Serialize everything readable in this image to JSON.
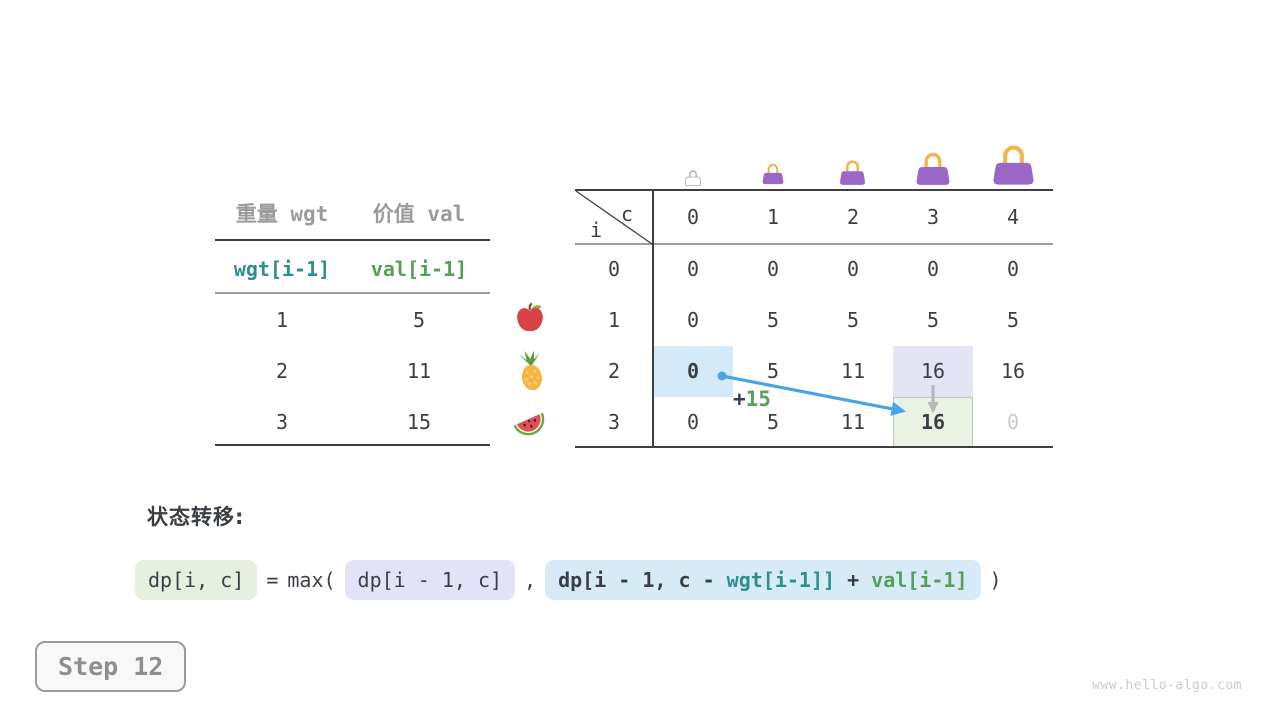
{
  "page": {
    "watermark": "www.hello-algo.com"
  },
  "step_badge": {
    "label": "Step 12"
  },
  "items_table": {
    "col_headers": [
      "重量 wgt",
      "价值 val"
    ],
    "sub_headers": [
      "wgt[i-1]",
      "val[i-1]"
    ],
    "rows": [
      {
        "wgt": "1",
        "val": "5",
        "fruit": "apple"
      },
      {
        "wgt": "2",
        "val": "11",
        "fruit": "pineapple"
      },
      {
        "wgt": "3",
        "val": "15",
        "fruit": "watermelon"
      }
    ]
  },
  "dp_table": {
    "corner": {
      "col_var": "c",
      "row_var": "i"
    },
    "col_headers": [
      "0",
      "1",
      "2",
      "3",
      "4"
    ],
    "row_headers": [
      "0",
      "1",
      "2",
      "3"
    ],
    "bags": [
      "bag-empty",
      "bag-size-1",
      "bag-size-2",
      "bag-size-3",
      "bag-size-4"
    ],
    "cells": [
      [
        "0",
        "0",
        "0",
        "0",
        "0"
      ],
      [
        "0",
        "5",
        "5",
        "5",
        "5"
      ],
      [
        {
          "v": "0",
          "hl": "blue",
          "bold": true
        },
        "5",
        "11",
        {
          "v": "16",
          "hl": "lavender"
        },
        "16"
      ],
      [
        "0",
        "5",
        "11",
        {
          "v": "16",
          "hl": "green",
          "bold": true
        },
        {
          "v": "0",
          "dim": true
        }
      ]
    ],
    "annotation": {
      "plus": "+",
      "value": "15"
    }
  },
  "formula": {
    "heading": "状态转移:",
    "result_chip": "dp[i, c]",
    "equals": "=",
    "max_open": "max(",
    "skip_chip": "dp[i - 1, c]",
    "comma": ",",
    "take_chip": {
      "part1": "dp[i - 1, c - ",
      "wgt": "wgt[i-1]]",
      "plus": " + ",
      "val": "val[i-1]"
    },
    "close": ")"
  },
  "colors": {
    "arrow_blue": "#4aa3e8",
    "arrow_gray": "#b9b9b9",
    "highlight_blue": "#d5eaf8",
    "highlight_lavender": "#e4e4f7",
    "highlight_green": "#eaf2e4",
    "teal": "#2f8f8f",
    "green": "#55a055",
    "bag_purple": "#9a66c7",
    "bag_handle": "#f2b553"
  }
}
